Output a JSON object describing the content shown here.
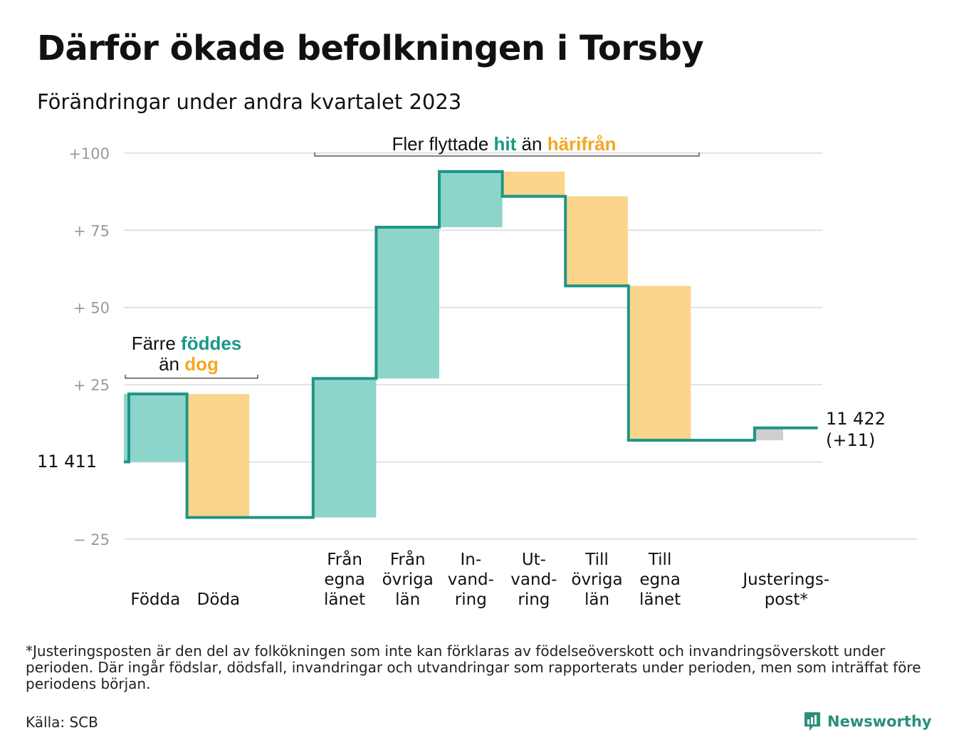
{
  "title": "Därför ökade befolkningen i Torsby",
  "subtitle": "Förändringar under andra kvartalet 2023",
  "footnote": "*Justeringsposten är den del av folkökningen som inte kan förklaras av födelseöverskott och invandringsöverskott under perioden. Där ingår födslar, dödsfall, invandringar och utvandringar som rapporterats under perioden, men som inträffat före periodens början.",
  "source": "Källa: SCB",
  "brand": {
    "name": "Newsworthy",
    "icon": "newsworthy-logo-icon"
  },
  "colors": {
    "teal_fill": "#8dd5cb",
    "orange_fill": "#fad58b",
    "line": "#1f9486",
    "gray_fill": "#cfcfcf",
    "teal_text": "#1a9785",
    "orange_text": "#f5a623"
  },
  "chart_data": {
    "type": "waterfall",
    "start_label": "11  411",
    "start_value": 11411,
    "end_label": "11 422",
    "end_change_label": "(+11)",
    "end_value": 11422,
    "y_ticks": [
      {
        "value": 100,
        "label": "+100"
      },
      {
        "value": 75,
        "label": "+  75"
      },
      {
        "value": 50,
        "label": "+  50"
      },
      {
        "value": 25,
        "label": "+  25"
      },
      {
        "value": 0,
        "label": ""
      },
      {
        "value": -25,
        "label": "−  25"
      }
    ],
    "ylim": [
      -25,
      100
    ],
    "steps": [
      {
        "label": [
          "Födda"
        ],
        "from": 0,
        "to": 22,
        "kind": "in"
      },
      {
        "label": [
          "Döda"
        ],
        "from": 22,
        "to": -18,
        "kind": "out"
      },
      {
        "label": [],
        "from": -18,
        "to": -18,
        "kind": "none"
      },
      {
        "label": [
          "Från",
          "egna",
          "länet"
        ],
        "from": -18,
        "to": 27,
        "kind": "in"
      },
      {
        "label": [
          "Från",
          "övriga",
          "län"
        ],
        "from": 27,
        "to": 76,
        "kind": "in"
      },
      {
        "label": [
          "In-",
          "vand-",
          "ring"
        ],
        "from": 76,
        "to": 94,
        "kind": "in"
      },
      {
        "label": [
          "Ut-",
          "vand-",
          "ring"
        ],
        "from": 94,
        "to": 86,
        "kind": "out"
      },
      {
        "label": [
          "Till",
          "övriga",
          "län"
        ],
        "from": 86,
        "to": 57,
        "kind": "out"
      },
      {
        "label": [
          "Till",
          "egna",
          "länet"
        ],
        "from": 57,
        "to": 7,
        "kind": "out"
      },
      {
        "label": [],
        "from": 7,
        "to": 7,
        "kind": "none"
      },
      {
        "label": [
          "Justerings-",
          "post*"
        ],
        "from": 7,
        "to": 11,
        "kind": "adjust"
      }
    ],
    "annotations": [
      {
        "parts": [
          {
            "text": "Färre ",
            "color": "dark"
          },
          {
            "text": "föddes",
            "color": "teal"
          }
        ],
        "parts2": [
          {
            "text": "än ",
            "color": "dark"
          },
          {
            "text": "dog",
            "color": "orange"
          }
        ]
      },
      {
        "parts": [
          {
            "text": "Fler flyttade ",
            "color": "dark"
          },
          {
            "text": "hit",
            "color": "teal"
          },
          {
            "text": " än ",
            "color": "dark"
          },
          {
            "text": "härifrån",
            "color": "orange"
          }
        ]
      }
    ]
  }
}
